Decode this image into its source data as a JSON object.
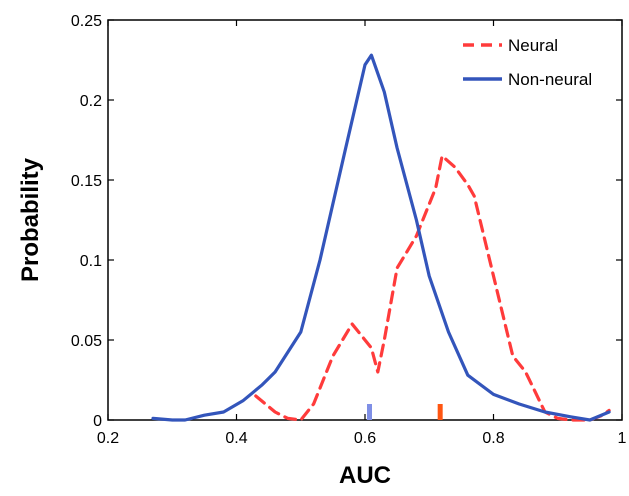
{
  "chart_data": {
    "type": "line",
    "title": "",
    "xlabel": "AUC",
    "ylabel": "Probability",
    "xlim": [
      0.2,
      1.0
    ],
    "ylim": [
      0,
      0.25
    ],
    "xticks": [
      "0.2",
      "0.4",
      "0.6",
      "0.8",
      "1"
    ],
    "yticks": [
      "0",
      "0.05",
      "0.1",
      "0.15",
      "0.2",
      "0.25"
    ],
    "xtick_values": [
      0.2,
      0.4,
      0.6,
      0.8,
      1.0
    ],
    "ytick_values": [
      0,
      0.05,
      0.1,
      0.15,
      0.2,
      0.25
    ],
    "grid": false,
    "legend_position": "top-right",
    "series": [
      {
        "name": "Neural",
        "color": "#ff3b3b",
        "style": "dashed",
        "x": [
          0.43,
          0.46,
          0.48,
          0.5,
          0.52,
          0.55,
          0.58,
          0.59,
          0.61,
          0.62,
          0.63,
          0.65,
          0.68,
          0.69,
          0.71,
          0.72,
          0.74,
          0.76,
          0.77,
          0.8,
          0.83,
          0.85,
          0.88,
          0.9,
          0.92,
          0.95,
          0.97,
          0.98
        ],
        "y": [
          0.015,
          0.005,
          0.001,
          0.0,
          0.01,
          0.04,
          0.06,
          0.055,
          0.045,
          0.03,
          0.05,
          0.095,
          0.115,
          0.125,
          0.145,
          0.165,
          0.158,
          0.147,
          0.14,
          0.09,
          0.04,
          0.03,
          0.005,
          0.001,
          0.0,
          0.0,
          0.003,
          0.006
        ]
      },
      {
        "name": "Non-neural",
        "color": "#3355bb",
        "style": "solid",
        "x": [
          0.27,
          0.3,
          0.32,
          0.35,
          0.38,
          0.41,
          0.44,
          0.46,
          0.5,
          0.53,
          0.57,
          0.6,
          0.61,
          0.63,
          0.65,
          0.68,
          0.7,
          0.73,
          0.76,
          0.8,
          0.84,
          0.88,
          0.92,
          0.95,
          0.98
        ],
        "y": [
          0.001,
          0.0,
          0.0,
          0.003,
          0.005,
          0.012,
          0.022,
          0.03,
          0.055,
          0.1,
          0.17,
          0.222,
          0.228,
          0.205,
          0.17,
          0.125,
          0.09,
          0.055,
          0.028,
          0.016,
          0.01,
          0.005,
          0.002,
          0.0,
          0.005
        ]
      }
    ],
    "markers": [
      {
        "series": "Non-neural",
        "x": 0.607,
        "color": "#7f8fe6"
      },
      {
        "series": "Neural",
        "x": 0.717,
        "color": "#ff5511"
      }
    ]
  }
}
